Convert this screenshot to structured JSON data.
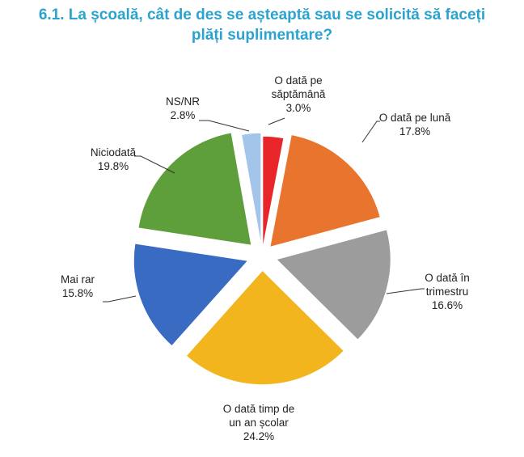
{
  "chart_data": {
    "type": "pie",
    "exploded": true,
    "title_lines": [
      "6.1. La școală, cât de des se așteaptă sau se solicită să faceți",
      "plăți suplimentare?"
    ],
    "slices": [
      {
        "label_lines": [
          "O dată pe",
          "săptămână"
        ],
        "value_text": "3.0%",
        "value": 3.0,
        "color": "#e8262a"
      },
      {
        "label_lines": [
          "O dată pe lună"
        ],
        "value_text": "17.8%",
        "value": 17.8,
        "color": "#e8742e"
      },
      {
        "label_lines": [
          "O dată în",
          "trimestru"
        ],
        "value_text": "16.6%",
        "value": 16.6,
        "color": "#9c9c9c"
      },
      {
        "label_lines": [
          "O dată timp de",
          "un an școlar"
        ],
        "value_text": "24.2%",
        "value": 24.2,
        "color": "#f2b51e"
      },
      {
        "label_lines": [
          "Mai rar"
        ],
        "value_text": "15.8%",
        "value": 15.8,
        "color": "#3a6bc2"
      },
      {
        "label_lines": [
          "Niciodată"
        ],
        "value_text": "19.8%",
        "value": 19.8,
        "color": "#5e9e3b"
      },
      {
        "label_lines": [
          "NS/NR"
        ],
        "value_text": "2.8%",
        "value": 2.8,
        "color": "#a3c5ea"
      }
    ]
  }
}
